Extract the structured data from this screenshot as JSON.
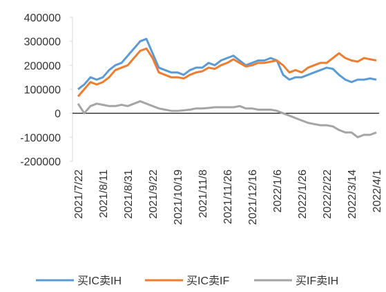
{
  "chart_data": {
    "type": "line",
    "categories": [
      "2021/7/22",
      null,
      null,
      null,
      "2021/8/11",
      null,
      null,
      null,
      "2021/8/31",
      null,
      null,
      null,
      "2021/9/22",
      null,
      null,
      null,
      "2021/10/19",
      null,
      null,
      null,
      "2021/11/8",
      null,
      null,
      null,
      "2021/11/26",
      null,
      null,
      null,
      "2021/12/16",
      null,
      null,
      null,
      "2022/1/6",
      null,
      null,
      null,
      "2022/1/26",
      null,
      null,
      null,
      "2022/2/22",
      null,
      null,
      null,
      "2022/3/14",
      null,
      null,
      null,
      "2022/4/1"
    ],
    "series": [
      {
        "name": "买IC卖IH",
        "color": "#5b9bd5",
        "values": [
          100000,
          120000,
          150000,
          140000,
          150000,
          180000,
          200000,
          210000,
          240000,
          270000,
          300000,
          310000,
          250000,
          190000,
          180000,
          170000,
          170000,
          160000,
          180000,
          190000,
          190000,
          210000,
          200000,
          220000,
          230000,
          240000,
          220000,
          200000,
          210000,
          220000,
          220000,
          230000,
          220000,
          160000,
          140000,
          150000,
          150000,
          160000,
          170000,
          180000,
          190000,
          185000,
          160000,
          140000,
          130000,
          140000,
          140000,
          145000,
          140000
        ]
      },
      {
        "name": "买IC卖IF",
        "color": "#ed7d31",
        "values": [
          70000,
          100000,
          130000,
          120000,
          130000,
          150000,
          180000,
          190000,
          200000,
          230000,
          260000,
          270000,
          230000,
          170000,
          160000,
          150000,
          150000,
          145000,
          160000,
          170000,
          175000,
          190000,
          185000,
          200000,
          210000,
          225000,
          210000,
          195000,
          200000,
          210000,
          210000,
          215000,
          220000,
          200000,
          170000,
          180000,
          170000,
          190000,
          200000,
          210000,
          210000,
          230000,
          250000,
          230000,
          220000,
          215000,
          230000,
          225000,
          220000
        ]
      },
      {
        "name": "买IF卖IH",
        "color": "#a5a5a5",
        "values": [
          40000,
          0,
          30000,
          40000,
          35000,
          30000,
          30000,
          35000,
          30000,
          40000,
          50000,
          40000,
          30000,
          20000,
          15000,
          10000,
          10000,
          12000,
          15000,
          20000,
          20000,
          22000,
          25000,
          25000,
          25000,
          25000,
          30000,
          20000,
          20000,
          15000,
          15000,
          15000,
          10000,
          0,
          -10000,
          -20000,
          -30000,
          -40000,
          -45000,
          -50000,
          -50000,
          -55000,
          -70000,
          -80000,
          -80000,
          -100000,
          -90000,
          -90000,
          -80000
        ]
      }
    ],
    "ylim": [
      -200000,
      400000
    ],
    "yticks": [
      -200000,
      -100000,
      0,
      100000,
      200000,
      300000,
      400000
    ]
  }
}
